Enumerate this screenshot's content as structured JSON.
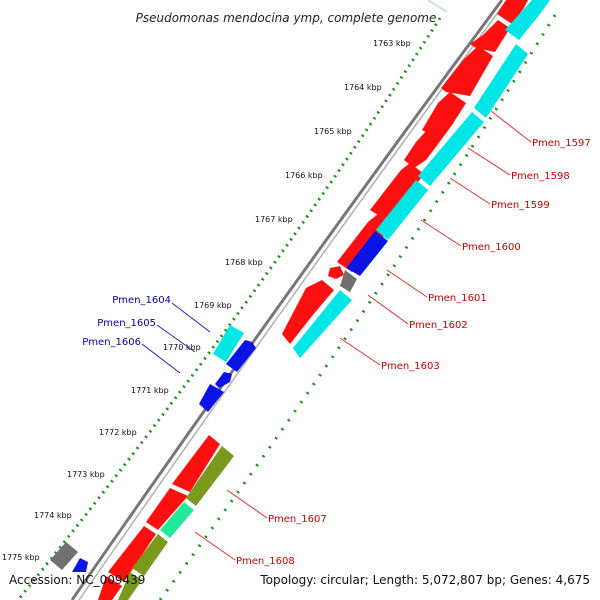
{
  "title": "Pseudomonas mendocina ymp, complete genome",
  "footer": {
    "accession": "Accession: NC_009439",
    "topology": "Topology: circular; Length: 5,072,807 bp; Genes: 4,675"
  },
  "colors": {
    "backbone": "#888888",
    "tick_dots": "#1f8f1f",
    "forward_gene": "#ff1010",
    "reverse_gene": "#00e5e5",
    "blue_gene": "#0a14e6",
    "grey_gene": "#707070",
    "olive_gene": "#7a9a1e",
    "green_gene": "#22e89a",
    "label_red": "#cc0000",
    "label_blue": "#0000aa"
  },
  "ticks": [
    "1763 kbp",
    "1764 kbp",
    "1765 kbp",
    "1766 kbp",
    "1767 kbp",
    "1768 kbp",
    "1769 kbp",
    "1770 kbp",
    "1771 kbp",
    "1772 kbp",
    "1773 kbp",
    "1774 kbp",
    "1775 kbp"
  ],
  "labels_right": [
    "Pmen_1597",
    "Pmen_1598",
    "Pmen_1599",
    "Pmen_1600",
    "Pmen_1601",
    "Pmen_1602",
    "Pmen_1603",
    "Pmen_1607",
    "Pmen_1608"
  ],
  "labels_left": [
    "Pmen_1604",
    "Pmen_1605",
    "Pmen_1606"
  ]
}
